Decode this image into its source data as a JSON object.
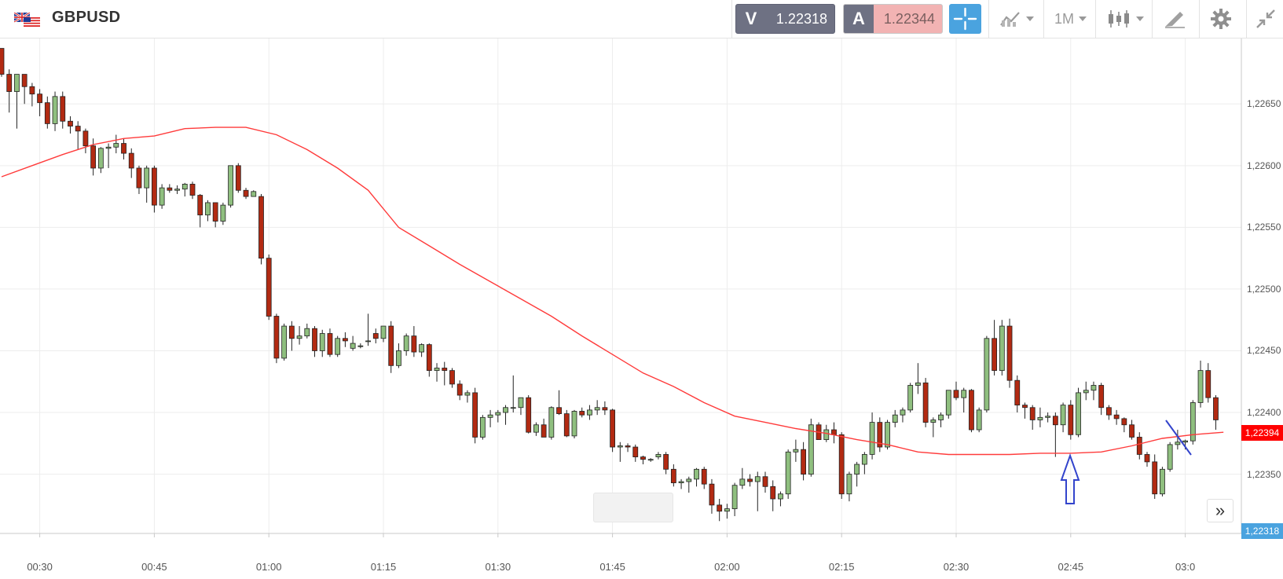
{
  "header": {
    "symbol": "GBPUSD",
    "bid_letter": "V",
    "bid_price": "1.22318",
    "ask_letter": "A",
    "ask_price": "1.22344",
    "timeframe": "1M"
  },
  "icons": {
    "flag": "uk-us-flag-icon",
    "crosshair": "crosshair-icon",
    "indicators": "indicators-icon",
    "candles": "candlestick-icon",
    "draw": "draw-pen-icon",
    "settings": "gear-icon",
    "collapse": "collapse-icon",
    "scroll": "scroll-right-icon"
  },
  "colors": {
    "up": "#8fbf7f",
    "down": "#b22a12",
    "ma": "#ff3b3b",
    "bid_bg": "#6e7183",
    "ask_bg": "#f2b3b3",
    "accent": "#4aa3df"
  },
  "price_tags": {
    "last": "1,22394",
    "bid": "1,22318"
  },
  "scroll_label": "»",
  "chart_data": {
    "type": "candlestick",
    "y_ticks": [
      "1,22650",
      "1,22600",
      "1,22550",
      "1,22500",
      "1,22450",
      "1,22400",
      "1,22350"
    ],
    "y_tick_values": [
      1.2265,
      1.226,
      1.2255,
      1.225,
      1.2245,
      1.224,
      1.2235
    ],
    "x_ticks": [
      "00:30",
      "00:45",
      "01:00",
      "01:15",
      "01:30",
      "01:45",
      "02:00",
      "02:15",
      "02:30",
      "02:45",
      "03:0"
    ],
    "x_start": "00:25",
    "interval": "1M",
    "grid": true,
    "ylim": [
      1.22302,
      1.22703
    ],
    "candles": [
      [
        1.22695,
        1.22695,
        1.22672,
        1.22674
      ],
      [
        1.22674,
        1.22678,
        1.22643,
        1.2266
      ],
      [
        1.2266,
        1.22674,
        1.2263,
        1.22674
      ],
      [
        1.22674,
        1.22674,
        1.2265,
        1.22664
      ],
      [
        1.22664,
        1.22667,
        1.22648,
        1.22658
      ],
      [
        1.22658,
        1.22662,
        1.2264,
        1.22651
      ],
      [
        1.22651,
        1.22656,
        1.2263,
        1.22634
      ],
      [
        1.22634,
        1.2266,
        1.22628,
        1.22656
      ],
      [
        1.22656,
        1.2266,
        1.2263,
        1.22636
      ],
      [
        1.22636,
        1.2264,
        1.22626,
        1.22632
      ],
      [
        1.22632,
        1.22636,
        1.22613,
        1.22628
      ],
      [
        1.22628,
        1.2263,
        1.2261,
        1.22616
      ],
      [
        1.22616,
        1.22622,
        1.22592,
        1.22598
      ],
      [
        1.22598,
        1.22615,
        1.22594,
        1.22614
      ],
      [
        1.22614,
        1.22618,
        1.22598,
        1.22615
      ],
      [
        1.22615,
        1.22625,
        1.2261,
        1.22618
      ],
      [
        1.22618,
        1.22622,
        1.22605,
        1.2261
      ],
      [
        1.2261,
        1.22614,
        1.2259,
        1.22598
      ],
      [
        1.22598,
        1.226,
        1.22577,
        1.22582
      ],
      [
        1.22582,
        1.226,
        1.2257,
        1.22598
      ],
      [
        1.22598,
        1.226,
        1.22562,
        1.22568
      ],
      [
        1.22568,
        1.22585,
        1.22565,
        1.22582
      ],
      [
        1.22582,
        1.22585,
        1.22578,
        1.2258
      ],
      [
        1.2258,
        1.22584,
        1.22577,
        1.22581
      ],
      [
        1.22581,
        1.22586,
        1.22575,
        1.22585
      ],
      [
        1.22585,
        1.22587,
        1.22573,
        1.22576
      ],
      [
        1.22576,
        1.22577,
        1.2255,
        1.2256
      ],
      [
        1.2256,
        1.22572,
        1.22555,
        1.2257
      ],
      [
        1.2257,
        1.2257,
        1.2255,
        1.22555
      ],
      [
        1.22555,
        1.2257,
        1.22552,
        1.22568
      ],
      [
        1.22568,
        1.226,
        1.22566,
        1.226
      ],
      [
        1.226,
        1.22602,
        1.22578,
        1.2258
      ],
      [
        1.2258,
        1.22582,
        1.22573,
        1.22575
      ],
      [
        1.22575,
        1.2258,
        1.22575,
        1.22579
      ],
      [
        1.22575,
        1.22577,
        1.2252,
        1.22525
      ],
      [
        1.22525,
        1.22528,
        1.22475,
        1.22478
      ],
      [
        1.22478,
        1.2248,
        1.2244,
        1.22444
      ],
      [
        1.22444,
        1.22472,
        1.22442,
        1.2247
      ],
      [
        1.2247,
        1.22474,
        1.2245,
        1.2246
      ],
      [
        1.2246,
        1.2247,
        1.22455,
        1.22462
      ],
      [
        1.22462,
        1.22472,
        1.2246,
        1.22468
      ],
      [
        1.22468,
        1.2247,
        1.22445,
        1.2245
      ],
      [
        1.2245,
        1.22467,
        1.22445,
        1.22464
      ],
      [
        1.22464,
        1.22468,
        1.22445,
        1.22447
      ],
      [
        1.22447,
        1.22462,
        1.22445,
        1.2246
      ],
      [
        1.2246,
        1.22465,
        1.22453,
        1.22458
      ],
      [
        1.22452,
        1.22462,
        1.2245,
        1.22456
      ],
      [
        1.22454,
        1.22456,
        1.22452,
        1.22454
      ],
      [
        1.22458,
        1.2248,
        1.22454,
        1.22458
      ],
      [
        1.22464,
        1.22468,
        1.22456,
        1.2246
      ],
      [
        1.2246,
        1.2247,
        1.22457,
        1.2247
      ],
      [
        1.2247,
        1.22474,
        1.22432,
        1.22438
      ],
      [
        1.22438,
        1.22456,
        1.22436,
        1.2245
      ],
      [
        1.2245,
        1.22464,
        1.22446,
        1.22462
      ],
      [
        1.22462,
        1.2247,
        1.22445,
        1.22449
      ],
      [
        1.22449,
        1.22456,
        1.22445,
        1.22455
      ],
      [
        1.22455,
        1.22456,
        1.22429,
        1.22434
      ],
      [
        1.22434,
        1.2244,
        1.22425,
        1.22436
      ],
      [
        1.22436,
        1.22441,
        1.22422,
        1.22434
      ],
      [
        1.22434,
        1.22436,
        1.2242,
        1.22423
      ],
      [
        1.22423,
        1.22426,
        1.2241,
        1.22414
      ],
      [
        1.22414,
        1.22418,
        1.22408,
        1.22416
      ],
      [
        1.22416,
        1.2242,
        1.22375,
        1.2238
      ],
      [
        1.2238,
        1.22398,
        1.22378,
        1.22396
      ],
      [
        1.22396,
        1.22402,
        1.22388,
        1.22398
      ],
      [
        1.22398,
        1.22402,
        1.22392,
        1.224
      ],
      [
        1.224,
        1.22406,
        1.2239,
        1.22404
      ],
      [
        1.22404,
        1.2243,
        1.224,
        1.22404
      ],
      [
        1.22404,
        1.22412,
        1.22398,
        1.22412
      ],
      [
        1.22412,
        1.22414,
        1.22383,
        1.22384
      ],
      [
        1.22384,
        1.22392,
        1.22381,
        1.2239
      ],
      [
        1.2239,
        1.22395,
        1.2238,
        1.2238
      ],
      [
        1.2238,
        1.22405,
        1.22378,
        1.22404
      ],
      [
        1.22404,
        1.22418,
        1.22398,
        1.22399
      ],
      [
        1.22399,
        1.22402,
        1.2238,
        1.22381
      ],
      [
        1.22381,
        1.22402,
        1.22379,
        1.22401
      ],
      [
        1.22401,
        1.22404,
        1.22396,
        1.22398
      ],
      [
        1.22398,
        1.22406,
        1.22394,
        1.22402
      ],
      [
        1.22402,
        1.2241,
        1.22398,
        1.22404
      ],
      [
        1.22404,
        1.22409,
        1.22398,
        1.22402
      ],
      [
        1.22402,
        1.22403,
        1.22368,
        1.22372
      ],
      [
        1.22372,
        1.22376,
        1.2236,
        1.22373
      ],
      [
        1.22373,
        1.22375,
        1.22368,
        1.22372
      ],
      [
        1.22372,
        1.22374,
        1.2236,
        1.22364
      ],
      [
        1.22364,
        1.22365,
        1.22358,
        1.22362
      ],
      [
        1.22362,
        1.22363,
        1.2236,
        1.22362
      ],
      [
        1.22364,
        1.22368,
        1.22362,
        1.22366
      ],
      [
        1.22366,
        1.22368,
        1.2235,
        1.22354
      ],
      [
        1.22354,
        1.22358,
        1.2234,
        1.22343
      ],
      [
        1.22343,
        1.22346,
        1.22338,
        1.22344
      ],
      [
        1.22344,
        1.22348,
        1.22335,
        1.22346
      ],
      [
        1.22346,
        1.22355,
        1.2234,
        1.22354
      ],
      [
        1.22354,
        1.22356,
        1.22338,
        1.22342
      ],
      [
        1.22342,
        1.22346,
        1.22318,
        1.22325
      ],
      [
        1.22325,
        1.2233,
        1.22312,
        1.2232
      ],
      [
        1.2232,
        1.22326,
        1.22314,
        1.22322
      ],
      [
        1.22322,
        1.22343,
        1.22316,
        1.22341
      ],
      [
        1.22341,
        1.22355,
        1.22338,
        1.22346
      ],
      [
        1.22346,
        1.2235,
        1.2234,
        1.22344
      ],
      [
        1.22344,
        1.22352,
        1.2232,
        1.22348
      ],
      [
        1.22348,
        1.22352,
        1.22335,
        1.2234
      ],
      [
        1.2234,
        1.22345,
        1.2232,
        1.2233
      ],
      [
        1.2233,
        1.22336,
        1.22324,
        1.22334
      ],
      [
        1.22334,
        1.2237,
        1.2233,
        1.22368
      ],
      [
        1.22368,
        1.22378,
        1.2236,
        1.2237
      ],
      [
        1.2237,
        1.22376,
        1.22345,
        1.2235
      ],
      [
        1.2235,
        1.22395,
        1.22348,
        1.2239
      ],
      [
        1.2239,
        1.22392,
        1.22378,
        1.22378
      ],
      [
        1.22378,
        1.2239,
        1.22376,
        1.22386
      ],
      [
        1.22386,
        1.22392,
        1.22375,
        1.22382
      ],
      [
        1.22382,
        1.22384,
        1.2233,
        1.22334
      ],
      [
        1.22334,
        1.22352,
        1.22328,
        1.2235
      ],
      [
        1.2235,
        1.2236,
        1.2234,
        1.22358
      ],
      [
        1.22358,
        1.22368,
        1.2235,
        1.22366
      ],
      [
        1.22366,
        1.224,
        1.22362,
        1.22392
      ],
      [
        1.22392,
        1.22396,
        1.22368,
        1.22372
      ],
      [
        1.22372,
        1.22394,
        1.2237,
        1.22392
      ],
      [
        1.22392,
        1.22402,
        1.22388,
        1.22398
      ],
      [
        1.22398,
        1.22404,
        1.22392,
        1.22402
      ],
      [
        1.22402,
        1.22424,
        1.224,
        1.22422
      ],
      [
        1.22422,
        1.2244,
        1.22415,
        1.22424
      ],
      [
        1.22424,
        1.22428,
        1.22388,
        1.22392
      ],
      [
        1.22392,
        1.22396,
        1.2238,
        1.22394
      ],
      [
        1.22394,
        1.224,
        1.22388,
        1.22398
      ],
      [
        1.22398,
        1.22418,
        1.22395,
        1.22418
      ],
      [
        1.22418,
        1.22425,
        1.2241,
        1.22412
      ],
      [
        1.22412,
        1.2242,
        1.224,
        1.22418
      ],
      [
        1.22418,
        1.22419,
        1.22384,
        1.22386
      ],
      [
        1.22386,
        1.22404,
        1.22384,
        1.22402
      ],
      [
        1.22402,
        1.22462,
        1.224,
        1.2246
      ],
      [
        1.2246,
        1.22475,
        1.2243,
        1.22434
      ],
      [
        1.22434,
        1.22475,
        1.2243,
        1.2247
      ],
      [
        1.2247,
        1.22476,
        1.2242,
        1.22426
      ],
      [
        1.22426,
        1.2243,
        1.224,
        1.22406
      ],
      [
        1.22406,
        1.22408,
        1.22395,
        1.22404
      ],
      [
        1.22404,
        1.22406,
        1.22386,
        1.22394
      ],
      [
        1.22394,
        1.22404,
        1.22388,
        1.22396
      ],
      [
        1.22396,
        1.224,
        1.22392,
        1.22397
      ],
      [
        1.22397,
        1.224,
        1.22364,
        1.2239
      ],
      [
        1.2239,
        1.22408,
        1.22384,
        1.22406
      ],
      [
        1.22406,
        1.2241,
        1.22378,
        1.22382
      ],
      [
        1.22382,
        1.2242,
        1.2238,
        1.22416
      ],
      [
        1.22416,
        1.22425,
        1.2241,
        1.22418
      ],
      [
        1.22418,
        1.22425,
        1.2241,
        1.22422
      ],
      [
        1.22422,
        1.22424,
        1.22398,
        1.22404
      ],
      [
        1.22404,
        1.22406,
        1.22394,
        1.22398
      ],
      [
        1.22398,
        1.22402,
        1.2239,
        1.22395
      ],
      [
        1.22395,
        1.22396,
        1.22384,
        1.2239
      ],
      [
        1.2239,
        1.22394,
        1.22378,
        1.2238
      ],
      [
        1.2238,
        1.22384,
        1.22362,
        1.22366
      ],
      [
        1.22366,
        1.22368,
        1.22356,
        1.2236
      ],
      [
        1.2236,
        1.22366,
        1.2233,
        1.22334
      ],
      [
        1.22334,
        1.22356,
        1.22332,
        1.22354
      ],
      [
        1.22354,
        1.22376,
        1.22352,
        1.22374
      ],
      [
        1.22374,
        1.22386,
        1.2237,
        1.22376
      ],
      [
        1.22376,
        1.22378,
        1.2237,
        1.22377
      ],
      [
        1.22377,
        1.2241,
        1.22374,
        1.22408
      ],
      [
        1.22408,
        1.22442,
        1.22404,
        1.22434
      ],
      [
        1.22434,
        1.2244,
        1.22408,
        1.22412
      ],
      [
        1.22412,
        1.22414,
        1.22386,
        1.22394
      ]
    ],
    "ma_series": [
      1.22591,
      1.226,
      1.22609,
      1.22617,
      1.22622,
      1.22624,
      1.2263,
      1.22631,
      1.22631,
      1.22625,
      1.22613,
      1.22598,
      1.2258,
      1.2255,
      1.22535,
      1.2252,
      1.22506,
      1.22492,
      1.22478,
      1.22462,
      1.22447,
      1.22432,
      1.22421,
      1.22408,
      1.22397,
      1.22392,
      1.22387,
      1.22383,
      1.22378,
      1.22374,
      1.22368,
      1.22366,
      1.22366,
      1.22366,
      1.22367,
      1.22367,
      1.22368,
      1.22373,
      1.22379,
      1.22382,
      1.22384,
      1.22387,
      1.22391,
      1.22393,
      1.22394,
      1.22394
    ]
  },
  "annotations": {
    "arrow_note": "blue-up-arrow",
    "trend_line": "blue-diagonal"
  }
}
